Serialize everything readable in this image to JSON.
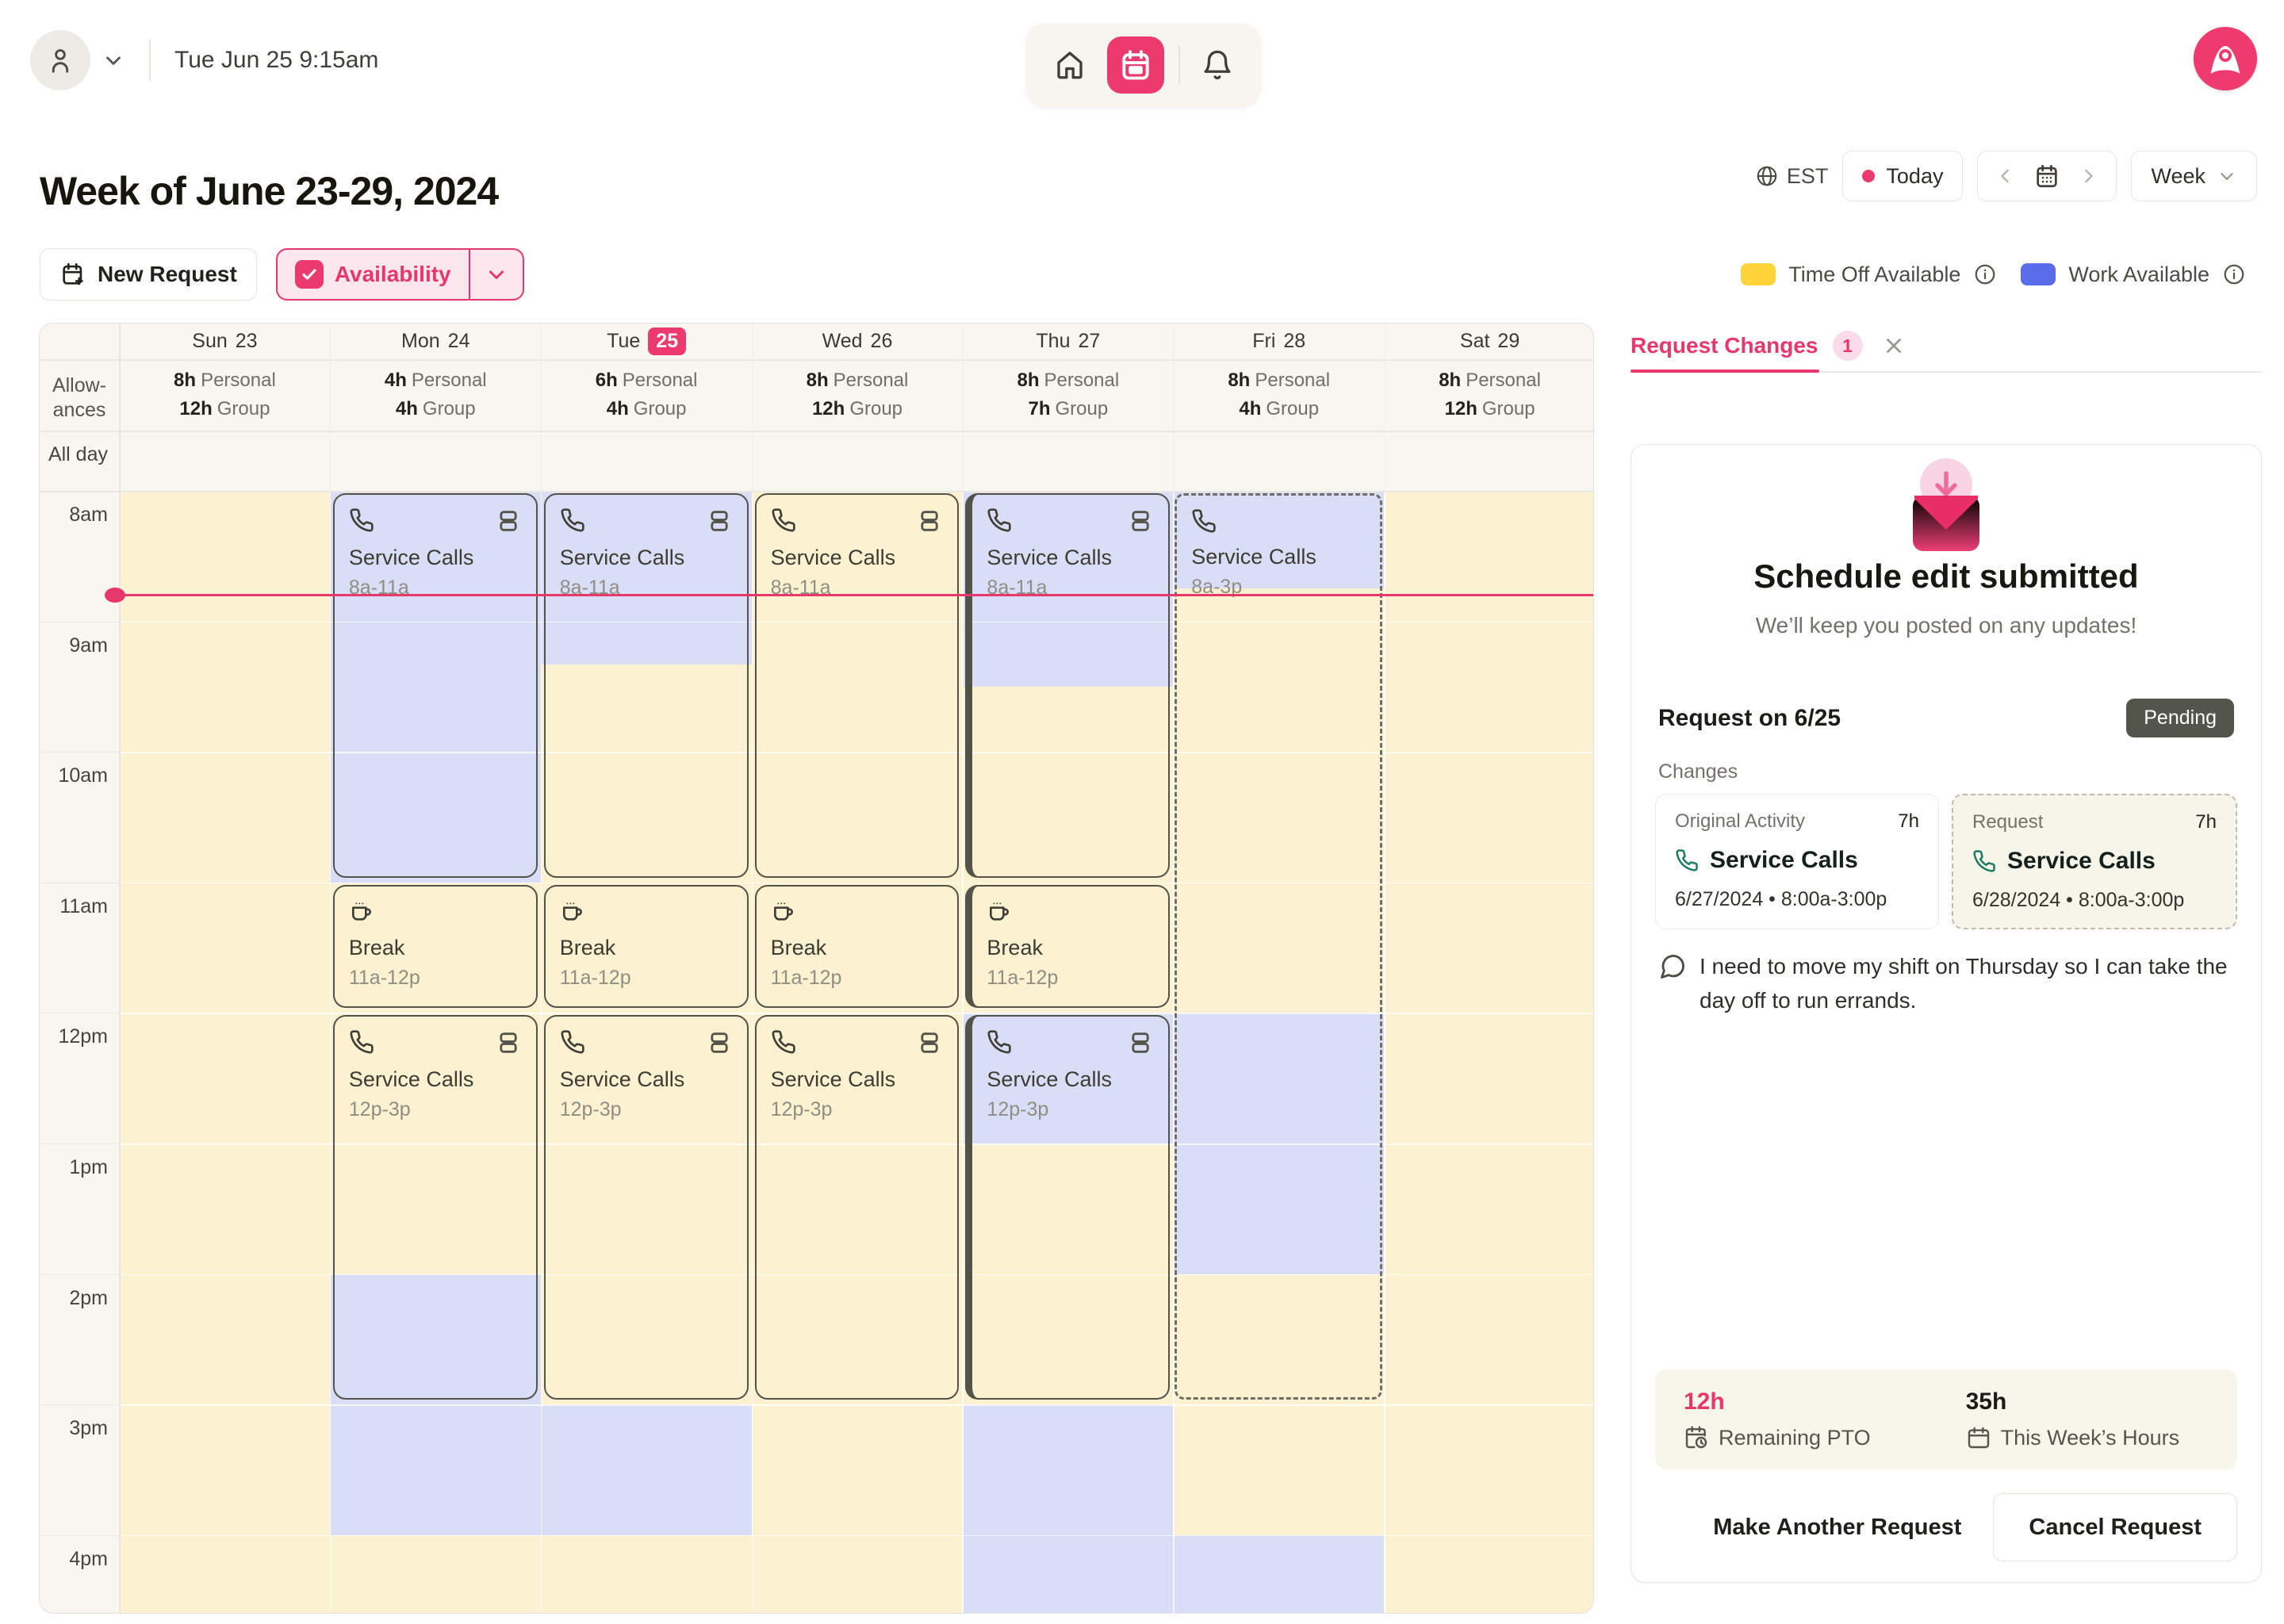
{
  "topbar": {
    "datetime": "Tue Jun 25 9:15am"
  },
  "header": {
    "title": "Week of June 23-29, 2024",
    "timezone": "EST",
    "today_label": "Today",
    "view_label": "Week"
  },
  "toolbar": {
    "new_request": "New Request",
    "availability": "Availability"
  },
  "legend": {
    "time_off": {
      "label": "Time Off Available",
      "color": "#FFD43B"
    },
    "work": {
      "label": "Work Available",
      "color": "#5B6CEB"
    }
  },
  "calendar": {
    "allowances_label_lines": [
      "Allow-",
      "ances"
    ],
    "all_day_label": "All day",
    "hours": [
      "8am",
      "9am",
      "10am",
      "11am",
      "12pm",
      "1pm",
      "2pm",
      "3pm",
      "4pm"
    ],
    "personal_suffix": "Personal",
    "group_suffix": "Group",
    "cell_colors": {
      "time_off": "#FCF2D1",
      "work_available": "#DADDF6"
    },
    "accent_color": "#EC3A6E",
    "days": [
      {
        "label": "Sun",
        "date": "23",
        "today": false,
        "personal": "8h",
        "group": "12h",
        "availability": [
          [
            8,
            16.61,
            "Y"
          ]
        ]
      },
      {
        "label": "Mon",
        "date": "24",
        "today": false,
        "personal": "4h",
        "group": "4h",
        "availability": [
          [
            8,
            11,
            "L"
          ],
          [
            11,
            14,
            "Y"
          ],
          [
            14,
            16,
            "L"
          ],
          [
            16,
            16.61,
            "Y"
          ]
        ]
      },
      {
        "label": "Tue",
        "date": "25",
        "today": true,
        "personal": "6h",
        "group": "4h",
        "availability": [
          [
            8,
            9.33,
            "L"
          ],
          [
            9.33,
            15,
            "Y"
          ],
          [
            15,
            16,
            "L"
          ],
          [
            16,
            16.61,
            "Y"
          ]
        ]
      },
      {
        "label": "Wed",
        "date": "26",
        "today": false,
        "personal": "8h",
        "group": "12h",
        "availability": [
          [
            8,
            16.61,
            "Y"
          ]
        ]
      },
      {
        "label": "Thu",
        "date": "27",
        "today": false,
        "personal": "8h",
        "group": "7h",
        "availability": [
          [
            8,
            9.5,
            "L"
          ],
          [
            9.5,
            12,
            "Y"
          ],
          [
            12,
            13,
            "L"
          ],
          [
            13,
            15,
            "Y"
          ],
          [
            15,
            16.61,
            "L"
          ]
        ]
      },
      {
        "label": "Fri",
        "date": "28",
        "today": false,
        "personal": "8h",
        "group": "4h",
        "availability": [
          [
            8,
            8.75,
            "L"
          ],
          [
            8.75,
            12,
            "Y"
          ],
          [
            12,
            14,
            "L"
          ],
          [
            14,
            16,
            "Y"
          ],
          [
            16,
            16.61,
            "L"
          ]
        ]
      },
      {
        "label": "Sat",
        "date": "29",
        "today": false,
        "personal": "8h",
        "group": "12h",
        "availability": [
          [
            8,
            16.61,
            "Y"
          ]
        ]
      }
    ],
    "events": [
      {
        "day": 1,
        "title": "Service Calls",
        "time": "8a-11a",
        "icon": "phone",
        "split": true,
        "start": 8,
        "end": 11
      },
      {
        "day": 2,
        "title": "Service Calls",
        "time": "8a-11a",
        "icon": "phone",
        "split": true,
        "start": 8,
        "end": 11
      },
      {
        "day": 3,
        "title": "Service Calls",
        "time": "8a-11a",
        "icon": "phone",
        "split": true,
        "start": 8,
        "end": 11
      },
      {
        "day": 4,
        "title": "Service Calls",
        "time": "8a-11a",
        "icon": "phone",
        "split": true,
        "start": 8,
        "end": 11,
        "accent": true
      },
      {
        "day": 1,
        "title": "Break",
        "time": "11a-12p",
        "icon": "coffee",
        "split": false,
        "start": 11,
        "end": 12
      },
      {
        "day": 2,
        "title": "Break",
        "time": "11a-12p",
        "icon": "coffee",
        "split": false,
        "start": 11,
        "end": 12
      },
      {
        "day": 3,
        "title": "Break",
        "time": "11a-12p",
        "icon": "coffee",
        "split": false,
        "start": 11,
        "end": 12
      },
      {
        "day": 4,
        "title": "Break",
        "time": "11a-12p",
        "icon": "coffee",
        "split": false,
        "start": 11,
        "end": 12,
        "accent": true
      },
      {
        "day": 1,
        "title": "Service Calls",
        "time": "12p-3p",
        "icon": "phone",
        "split": true,
        "start": 12,
        "end": 15
      },
      {
        "day": 2,
        "title": "Service Calls",
        "time": "12p-3p",
        "icon": "phone",
        "split": true,
        "start": 12,
        "end": 15
      },
      {
        "day": 3,
        "title": "Service Calls",
        "time": "12p-3p",
        "icon": "phone",
        "split": true,
        "start": 12,
        "end": 15
      },
      {
        "day": 4,
        "title": "Service Calls",
        "time": "12p-3p",
        "icon": "phone",
        "split": true,
        "start": 12,
        "end": 15,
        "accent": true
      },
      {
        "day": 5,
        "title": "Service Calls",
        "time": "8a-3p",
        "icon": "phone",
        "split": false,
        "start": 8,
        "end": 15,
        "dashed": true
      }
    ],
    "now_time_fraction": 0.792
  },
  "panel": {
    "tab": "Request Changes",
    "tab_badge": "1",
    "title": "Schedule edit submitted",
    "subtitle": "We’ll keep you posted on any updates!",
    "request_on": "Request on 6/25",
    "status": "Pending",
    "status_color": "#53554A",
    "changes_label": "Changes",
    "original": {
      "header": "Original Activity",
      "hours": "7h",
      "title": "Service Calls",
      "datetime": "6/27/2024 • 8:00a-3:00p"
    },
    "request": {
      "header": "Request",
      "hours": "7h",
      "title": "Service Calls",
      "datetime": "6/28/2024 • 8:00a-3:00p"
    },
    "comment": "I need to move my shift on Thursday so I can take the day off to run errands.",
    "stats": {
      "pto_value": "12h",
      "pto_label": "Remaining PTO",
      "week_value": "35h",
      "week_label": "This Week’s Hours"
    },
    "actions": {
      "make_another": "Make Another Request",
      "cancel": "Cancel Request"
    }
  }
}
